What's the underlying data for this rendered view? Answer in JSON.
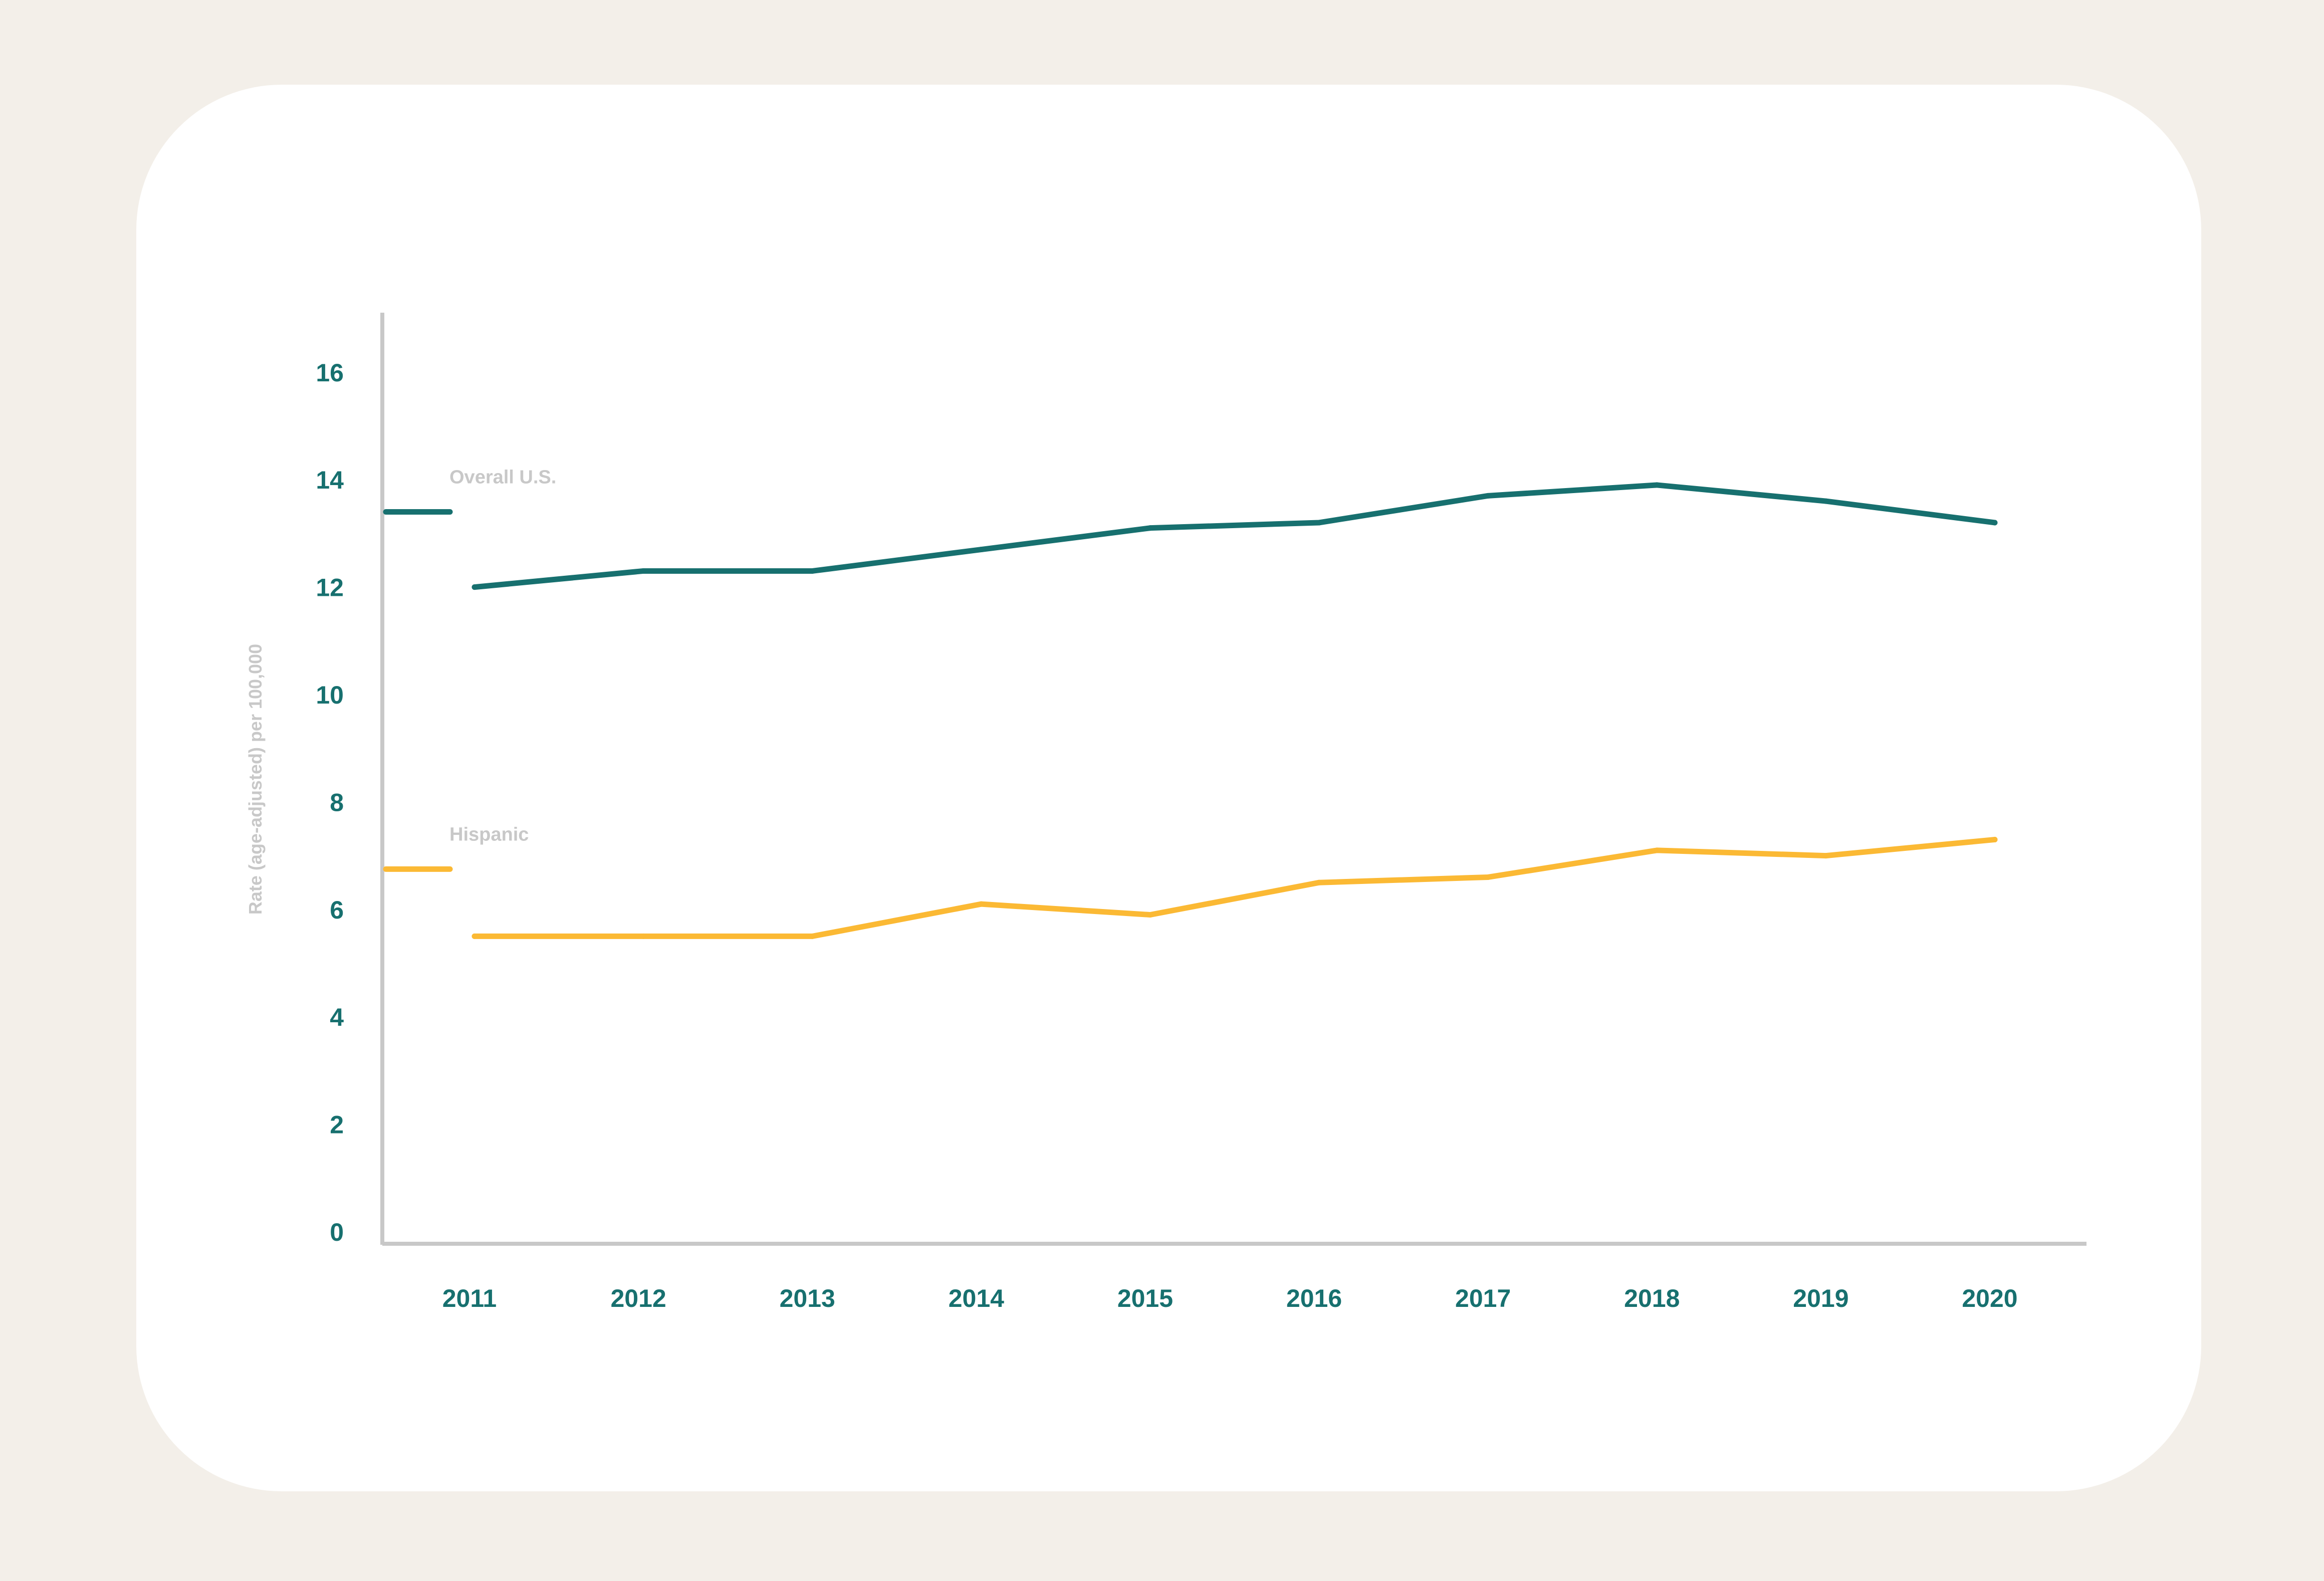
{
  "chart_data": {
    "type": "line",
    "title": "",
    "xlabel": "",
    "ylabel": "Rate (age-adjusted) per 100,000",
    "x": [
      2011,
      2012,
      2013,
      2014,
      2015,
      2016,
      2017,
      2018,
      2019,
      2020
    ],
    "x_tick_labels": [
      "2011",
      "2012",
      "2013",
      "2014",
      "2015",
      "2016",
      "2017",
      "2018",
      "2019",
      "2020"
    ],
    "y_tick_labels": [
      "0",
      "2",
      "4",
      "6",
      "8",
      "10",
      "12",
      "14",
      "16"
    ],
    "ylim": [
      0,
      16
    ],
    "grid": false,
    "legend_placement": "left, inline beside y-axis",
    "series": [
      {
        "name": "Overall U.S.",
        "color": "#17706f",
        "values": [
          12.0,
          12.3,
          12.3,
          12.7,
          13.1,
          13.2,
          13.7,
          13.9,
          13.6,
          13.2
        ]
      },
      {
        "name": "Hispanic",
        "color": "#fbb934",
        "values": [
          5.5,
          5.5,
          5.5,
          6.1,
          5.9,
          6.5,
          6.6,
          7.1,
          7.0,
          7.3
        ]
      }
    ],
    "colors": {
      "background": "#f3efe9",
      "card": "#ffffff",
      "axis": "#c8c8c8",
      "tick_text": "#17706f",
      "label_text": "#c8c8c8"
    }
  }
}
